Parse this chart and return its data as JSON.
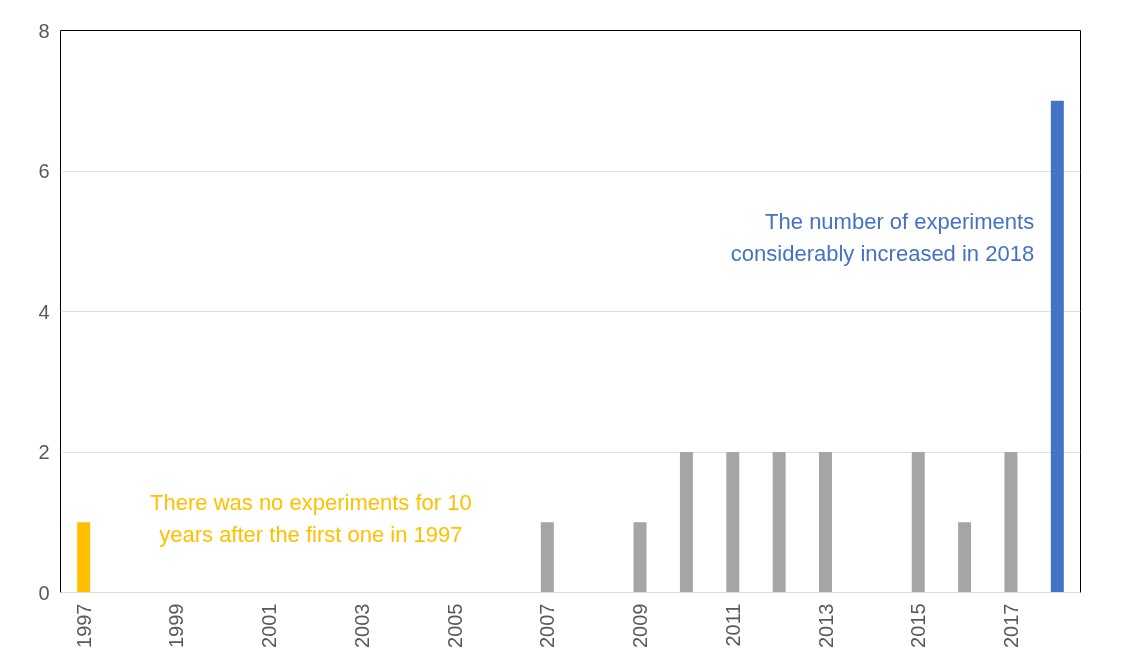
{
  "chart_data": {
    "type": "bar",
    "categories": [
      "1997",
      null,
      "1999",
      null,
      "2001",
      null,
      "2003",
      null,
      "2005",
      null,
      "2007",
      null,
      "2009",
      null,
      "2011",
      null,
      "2013",
      null,
      "2015",
      null,
      "2017",
      null
    ],
    "values": [
      1,
      0,
      0,
      0,
      0,
      0,
      0,
      0,
      0,
      0,
      1,
      0,
      1,
      2,
      2,
      2,
      2,
      0,
      2,
      1,
      2,
      7
    ],
    "colors": [
      "#ffc000",
      "#a5a5a5",
      "#a5a5a5",
      "#a5a5a5",
      "#a5a5a5",
      "#a5a5a5",
      "#a5a5a5",
      "#a5a5a5",
      "#a5a5a5",
      "#a5a5a5",
      "#a5a5a5",
      "#a5a5a5",
      "#a5a5a5",
      "#a5a5a5",
      "#a5a5a5",
      "#a5a5a5",
      "#a5a5a5",
      "#a5a5a5",
      "#a5a5a5",
      "#a5a5a5",
      "#a5a5a5",
      "#4472c4"
    ],
    "ylim": [
      0,
      8
    ],
    "yticks": [
      0,
      2,
      4,
      6,
      8
    ],
    "grid": "y",
    "annotations": [
      "There was no experiments for 10\nyears after the first one in 1997",
      "The number of experiments\nconsiderably increased in 2018"
    ]
  }
}
